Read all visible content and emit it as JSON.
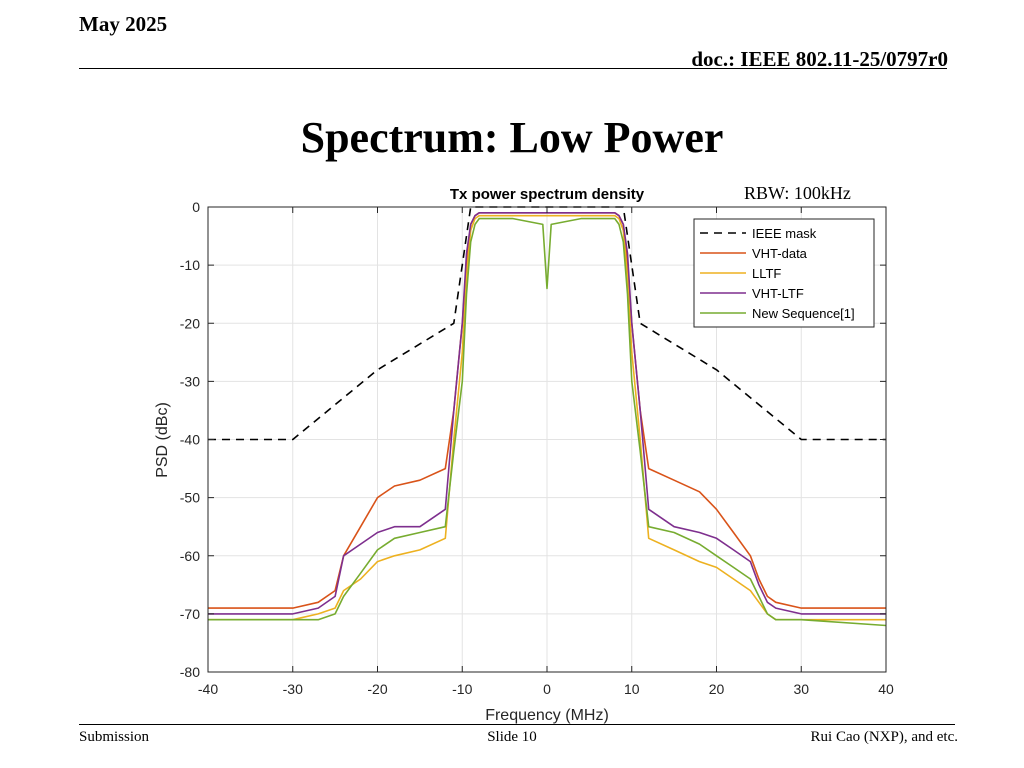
{
  "slide": {
    "date": "May 2025",
    "doc": "doc.: IEEE 802.11-25/0797r0",
    "title": "Spectrum: Low Power",
    "rbw_note": "RBW: 100kHz",
    "footer_left": "Submission",
    "footer_center": "Slide 10",
    "footer_right": "Rui Cao (NXP), and etc."
  },
  "chart_data": {
    "type": "line",
    "title": "Tx power spectrum density",
    "xlabel": "Frequency (MHz)",
    "ylabel": "PSD (dBc)",
    "xlim": [
      -40,
      40
    ],
    "ylim": [
      -80,
      0
    ],
    "xticks": [
      -40,
      -30,
      -20,
      -10,
      0,
      10,
      20,
      30,
      40
    ],
    "yticks": [
      0,
      -10,
      -20,
      -30,
      -40,
      -50,
      -60,
      -70,
      -80
    ],
    "grid": true,
    "legend_position": "top-right",
    "series": [
      {
        "name": "IEEE mask",
        "color": "#000000",
        "style": "dashed",
        "x": [
          -40,
          -30,
          -20,
          -11,
          -9,
          9,
          11,
          20,
          30,
          40
        ],
        "y": [
          -40,
          -40,
          -28,
          -20,
          0,
          0,
          -20,
          -28,
          -40,
          -40
        ]
      },
      {
        "name": "VHT-data",
        "color": "#d95319",
        "style": "solid",
        "x": [
          -40,
          -30,
          -27,
          -25,
          -24,
          -22,
          -20,
          -18,
          -15,
          -12,
          -11,
          -10,
          -9.5,
          -9,
          -8.5,
          -8,
          -4,
          0,
          4,
          8,
          8.5,
          9,
          9.5,
          10,
          11,
          12,
          15,
          18,
          20,
          22,
          24,
          25,
          26,
          27,
          30,
          40
        ],
        "y": [
          -69,
          -69,
          -68,
          -66,
          -60,
          -55,
          -50,
          -48,
          -47,
          -45,
          -35,
          -20,
          -10,
          -3,
          -1.5,
          -1,
          -1,
          -1,
          -1,
          -1,
          -1.5,
          -3,
          -10,
          -20,
          -35,
          -45,
          -47,
          -49,
          -52,
          -56,
          -60,
          -64,
          -67,
          -68,
          -69,
          -69
        ]
      },
      {
        "name": "LLTF",
        "color": "#edb120",
        "style": "solid",
        "x": [
          -40,
          -30,
          -27,
          -25,
          -24,
          -22,
          -20,
          -18,
          -15,
          -12,
          -11,
          -10,
          -9.5,
          -9,
          -8.5,
          -8,
          -4,
          0,
          4,
          8,
          8.5,
          9,
          9.5,
          10,
          11,
          12,
          15,
          18,
          20,
          22,
          24,
          25,
          26,
          27,
          30,
          40
        ],
        "y": [
          -71,
          -71,
          -70,
          -69,
          -66,
          -64,
          -61,
          -60,
          -59,
          -57,
          -40,
          -25,
          -12,
          -4,
          -2,
          -1.5,
          -1.5,
          -1.5,
          -1.5,
          -1.5,
          -2,
          -4,
          -12,
          -25,
          -40,
          -57,
          -59,
          -61,
          -62,
          -64,
          -66,
          -68,
          -70,
          -71,
          -71,
          -71
        ]
      },
      {
        "name": "VHT-LTF",
        "color": "#7e2f8e",
        "style": "solid",
        "x": [
          -40,
          -30,
          -27,
          -25,
          -24,
          -22,
          -20,
          -18,
          -15,
          -12,
          -11,
          -10,
          -9.5,
          -9,
          -8.5,
          -8,
          -4,
          0,
          4,
          8,
          8.5,
          9,
          9.5,
          10,
          11,
          12,
          15,
          18,
          20,
          22,
          24,
          25,
          26,
          27,
          30,
          40
        ],
        "y": [
          -70,
          -70,
          -69,
          -67,
          -60,
          -58,
          -56,
          -55,
          -55,
          -52,
          -35,
          -20,
          -8,
          -3,
          -1.5,
          -1,
          -1,
          -1,
          -1,
          -1,
          -1.5,
          -3,
          -8,
          -20,
          -35,
          -52,
          -55,
          -56,
          -57,
          -59,
          -61,
          -65,
          -68,
          -69,
          -70,
          -70
        ]
      },
      {
        "name": "New Sequence[1]",
        "color": "#77ac30",
        "style": "solid",
        "x": [
          -40,
          -30,
          -27,
          -25,
          -24,
          -22,
          -20,
          -18,
          -15,
          -12,
          -11,
          -10,
          -9.5,
          -9,
          -8.5,
          -8,
          -4,
          -0.5,
          0,
          0.5,
          4,
          8,
          8.5,
          9,
          9.5,
          10,
          11,
          12,
          15,
          18,
          20,
          22,
          24,
          25,
          26,
          27,
          30,
          40
        ],
        "y": [
          -71,
          -71,
          -71,
          -70,
          -67,
          -63,
          -59,
          -57,
          -56,
          -55,
          -42,
          -30,
          -15,
          -6,
          -3,
          -2,
          -2,
          -3,
          -14,
          -3,
          -2,
          -2,
          -3,
          -6,
          -15,
          -30,
          -42,
          -55,
          -56,
          -58,
          -60,
          -62,
          -64,
          -67,
          -70,
          -71,
          -71,
          -72
        ]
      }
    ]
  }
}
